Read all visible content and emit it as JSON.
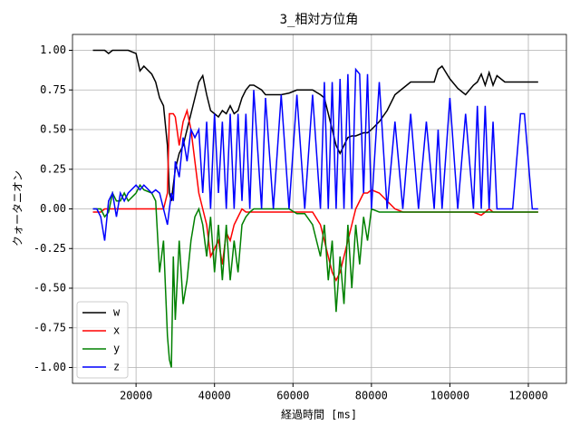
{
  "chart_data": {
    "type": "line",
    "title": "3_相対方位角",
    "x_label": "経過時間 [ms]",
    "y_label": "クォータニオン",
    "x": [
      9000,
      10000,
      11000,
      12000,
      13000,
      14000,
      15000,
      16000,
      17000,
      18000,
      20000,
      21000,
      22000,
      24000,
      25000,
      26000,
      27000,
      28000,
      28500,
      29000,
      29500,
      30000,
      31000,
      32000,
      33000,
      34000,
      35000,
      36000,
      37000,
      38000,
      39000,
      40000,
      41000,
      42000,
      43000,
      44000,
      45000,
      46000,
      47000,
      48000,
      49000,
      50000,
      52000,
      53000,
      55000,
      57000,
      59000,
      61000,
      63000,
      65000,
      67000,
      68000,
      69000,
      70000,
      71000,
      72000,
      73000,
      74000,
      75000,
      76000,
      77000,
      78000,
      79000,
      80000,
      82000,
      84000,
      86000,
      88000,
      90000,
      92000,
      94000,
      96000,
      97000,
      98000,
      100000,
      102000,
      104000,
      106000,
      107000,
      108000,
      109000,
      110000,
      111000,
      112000,
      114000,
      116000,
      118000,
      119000,
      121000,
      122500
    ],
    "series": [
      {
        "name": "w",
        "color": "#000000",
        "values": [
          1,
          1,
          1,
          1,
          0.98,
          1,
          1,
          1,
          1,
          1,
          0.98,
          0.87,
          0.9,
          0.85,
          0.8,
          0.7,
          0.65,
          0.4,
          0.1,
          0.05,
          0.15,
          0.25,
          0.35,
          0.4,
          0.5,
          0.6,
          0.7,
          0.8,
          0.84,
          0.72,
          0.62,
          0.6,
          0.58,
          0.62,
          0.6,
          0.65,
          0.6,
          0.62,
          0.7,
          0.75,
          0.78,
          0.78,
          0.75,
          0.72,
          0.72,
          0.72,
          0.73,
          0.75,
          0.75,
          0.75,
          0.72,
          0.7,
          0.6,
          0.5,
          0.4,
          0.35,
          0.4,
          0.45,
          0.46,
          0.46,
          0.47,
          0.48,
          0.48,
          0.5,
          0.55,
          0.62,
          0.72,
          0.76,
          0.8,
          0.8,
          0.8,
          0.8,
          0.88,
          0.9,
          0.82,
          0.76,
          0.72,
          0.78,
          0.8,
          0.85,
          0.78,
          0.86,
          0.78,
          0.84,
          0.8,
          0.8,
          0.8,
          0.8,
          0.8,
          0.8
        ]
      },
      {
        "name": "x",
        "color": "#ff0000",
        "values": [
          -0.02,
          -0.02,
          -0.02,
          0,
          0,
          0,
          0,
          0,
          0,
          0,
          0,
          0,
          0,
          0,
          0,
          0,
          0,
          0.1,
          0.6,
          0.6,
          0.6,
          0.58,
          0.4,
          0.55,
          0.62,
          0.5,
          0.3,
          0.1,
          0,
          -0.1,
          -0.3,
          -0.25,
          -0.2,
          -0.35,
          -0.15,
          -0.2,
          -0.1,
          -0.05,
          0,
          -0.02,
          -0.02,
          -0.02,
          -0.02,
          -0.02,
          -0.02,
          -0.02,
          -0.02,
          -0.02,
          -0.02,
          -0.02,
          -0.1,
          -0.2,
          -0.3,
          -0.4,
          -0.45,
          -0.4,
          -0.3,
          -0.2,
          -0.1,
          0,
          0.05,
          0.1,
          0.1,
          0.12,
          0.1,
          0.05,
          0,
          -0.02,
          -0.02,
          -0.02,
          -0.02,
          -0.02,
          -0.02,
          -0.02,
          -0.02,
          -0.02,
          -0.02,
          -0.02,
          -0.03,
          -0.04,
          -0.02,
          0,
          -0.02,
          -0.02,
          -0.02,
          -0.02,
          -0.02,
          -0.02,
          -0.02,
          -0.02
        ]
      },
      {
        "name": "y",
        "color": "#008000",
        "values": [
          0,
          0,
          0,
          -0.05,
          -0.02,
          0.1,
          0.05,
          0.05,
          0.1,
          0.05,
          0.1,
          0.15,
          0.12,
          0.1,
          0.05,
          -0.4,
          -0.2,
          -0.8,
          -0.95,
          -1.0,
          -0.3,
          -0.7,
          -0.2,
          -0.6,
          -0.45,
          -0.2,
          -0.05,
          0,
          -0.1,
          -0.3,
          -0.05,
          -0.4,
          -0.1,
          -0.45,
          -0.1,
          -0.45,
          -0.2,
          -0.4,
          -0.1,
          -0.05,
          -0.02,
          0,
          0,
          0,
          0,
          0,
          0,
          -0.03,
          -0.03,
          -0.1,
          -0.3,
          -0.1,
          -0.45,
          -0.2,
          -0.65,
          -0.3,
          -0.6,
          -0.1,
          -0.5,
          -0.1,
          -0.35,
          -0.05,
          -0.2,
          0,
          -0.02,
          -0.02,
          -0.02,
          -0.02,
          -0.02,
          -0.02,
          -0.02,
          -0.02,
          -0.02,
          -0.02,
          -0.02,
          -0.02,
          -0.02,
          -0.02,
          -0.02,
          -0.02,
          -0.02,
          -0.02,
          -0.02,
          -0.02,
          -0.02,
          -0.02,
          -0.02,
          -0.02,
          -0.02,
          -0.02
        ]
      },
      {
        "name": "z",
        "color": "#0000ff",
        "values": [
          0,
          0,
          -0.05,
          -0.2,
          0.05,
          0.1,
          -0.05,
          0.1,
          0.05,
          0.1,
          0.15,
          0.12,
          0.15,
          0.1,
          0.12,
          0.1,
          0,
          -0.1,
          0,
          0.1,
          0.05,
          0.3,
          0.2,
          0.45,
          0.3,
          0.5,
          0.45,
          0.5,
          0.1,
          0.55,
          0,
          0.6,
          0.1,
          0.55,
          0,
          0.6,
          0,
          0.6,
          0.05,
          0.6,
          0,
          0.75,
          0,
          0.7,
          0,
          0.72,
          0,
          0.72,
          0,
          0.72,
          0,
          0.8,
          0,
          0.8,
          0,
          0.82,
          0,
          0.85,
          0,
          0.88,
          0.85,
          0.1,
          0.85,
          0,
          0.8,
          0,
          0.55,
          0,
          0.6,
          0,
          0.55,
          0,
          0.5,
          0,
          0.7,
          0,
          0.6,
          0,
          0.65,
          0,
          0.65,
          0,
          0.55,
          0,
          0,
          0,
          0.6,
          0.6,
          0,
          0
        ]
      }
    ],
    "xlim": [
      3800,
      129700
    ],
    "ylim": [
      -1.1,
      1.1
    ],
    "xticks": [
      20000,
      40000,
      60000,
      80000,
      100000,
      120000
    ],
    "yticks": [
      {
        "value": -1,
        "label": "-1.00"
      },
      {
        "value": -0.75,
        "label": "-0.75"
      },
      {
        "value": -0.5,
        "label": "-0.50"
      },
      {
        "value": -0.25,
        "label": "-0.25"
      },
      {
        "value": 0,
        "label": "0.00"
      },
      {
        "value": 0.25,
        "label": "0.25"
      },
      {
        "value": 0.5,
        "label": "0.50"
      },
      {
        "value": 0.75,
        "label": "0.75"
      },
      {
        "value": 1,
        "label": "1.00"
      }
    ],
    "grid": true,
    "legend": "lower left"
  }
}
